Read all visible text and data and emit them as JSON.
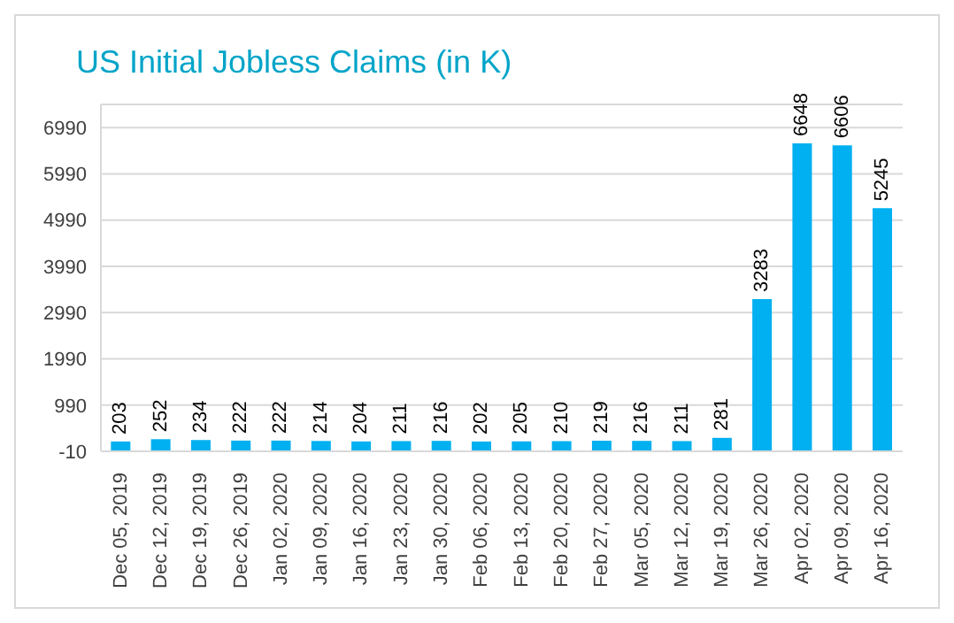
{
  "chart_data": {
    "type": "bar",
    "title": "US Initial Jobless Claims (in K)",
    "categories": [
      "Dec 05, 2019",
      "Dec 12, 2019",
      "Dec 19, 2019",
      "Dec 26, 2019",
      "Jan 02, 2020",
      "Jan 09, 2020",
      "Jan 16, 2020",
      "Jan 23, 2020",
      "Jan 30, 2020",
      "Feb 06, 2020",
      "Feb 13, 2020",
      "Feb 20, 2020",
      "Feb 27, 2020",
      "Mar 05, 2020",
      "Mar 12, 2020",
      "Mar 19, 2020",
      "Mar 26, 2020",
      "Apr 02, 2020",
      "Apr 09, 2020",
      "Apr 16, 2020"
    ],
    "values": [
      203,
      252,
      234,
      222,
      222,
      214,
      204,
      211,
      216,
      202,
      205,
      210,
      219,
      216,
      211,
      281,
      3283,
      6648,
      6606,
      5245
    ],
    "color": "#00b0f0",
    "ylim": [
      -10,
      7490
    ],
    "yticks": [
      -10,
      990,
      1990,
      2990,
      3990,
      4990,
      5990,
      6990
    ],
    "grid": "y",
    "data_labels": true
  }
}
